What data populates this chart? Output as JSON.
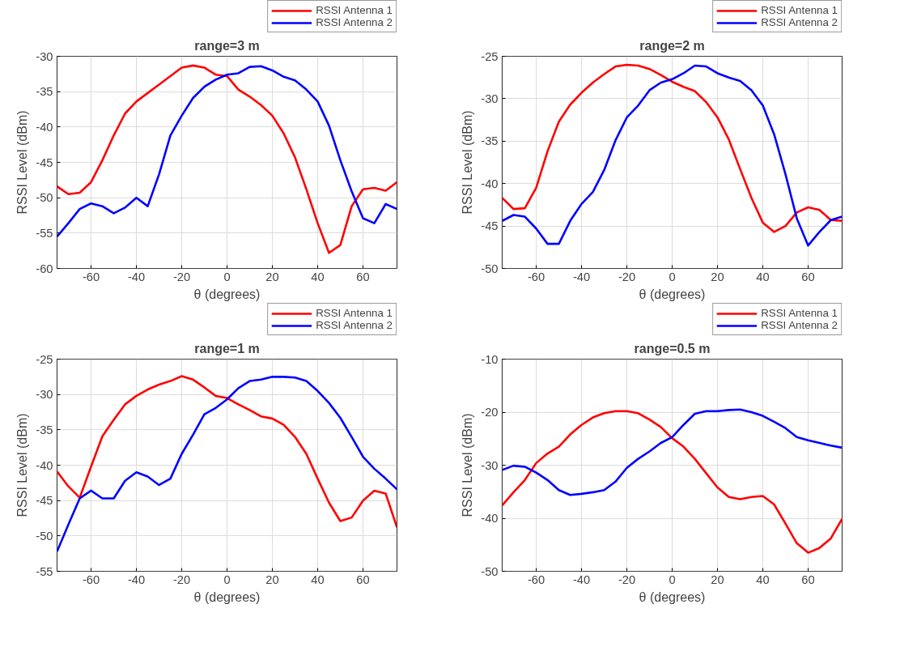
{
  "chart_data": [
    {
      "type": "line",
      "title": "range=3 m",
      "xlabel": "θ (degrees)",
      "ylabel": "RSSI Level (dBm)",
      "xlim": [
        -75,
        75
      ],
      "xticks": [
        -60,
        -40,
        -20,
        0,
        20,
        40,
        60
      ],
      "ylim": [
        -60,
        -30
      ],
      "yticks": [
        -60,
        -55,
        -50,
        -45,
        -40,
        -35,
        -30
      ],
      "grid": true,
      "legend": "top right",
      "line_style": "solid",
      "x": [
        -75,
        -70,
        -65,
        -60,
        -55,
        -50,
        -45,
        -40,
        -35,
        -30,
        -25,
        -20,
        -15,
        -10,
        -5,
        0,
        5,
        10,
        15,
        20,
        25,
        30,
        35,
        40,
        45,
        50,
        55,
        60,
        65,
        70,
        75
      ],
      "series": [
        {
          "name": "RSSI Antenna 1",
          "color": "#ff0000",
          "values": [
            -48.4,
            -49.5,
            -49.3,
            -47.8,
            -44.7,
            -41.2,
            -38.1,
            -36.4,
            -35.2,
            -34,
            -32.8,
            -31.6,
            -31.3,
            -31.6,
            -32.6,
            -32.8,
            -34.7,
            -35.7,
            -36.9,
            -38.4,
            -40.9,
            -44.3,
            -48.8,
            -53.6,
            -57.8,
            -56.7,
            -51.2,
            -48.8,
            -48.6,
            -49,
            -47.8
          ]
        },
        {
          "name": "RSSI Antenna 2",
          "color": "#0000ff",
          "values": [
            -55.5,
            -53.6,
            -51.6,
            -50.8,
            -51.2,
            -52.2,
            -51.4,
            -50,
            -51.2,
            -46.7,
            -41.2,
            -38.4,
            -35.9,
            -34.3,
            -33.3,
            -32.6,
            -32.4,
            -31.5,
            -31.4,
            -32,
            -32.9,
            -33.4,
            -34.7,
            -36.4,
            -39.8,
            -44.7,
            -49.1,
            -52.9,
            -53.6,
            -50.9,
            -51.6
          ]
        }
      ]
    },
    {
      "type": "line",
      "title": "range=2 m",
      "xlabel": "θ (degrees)",
      "ylabel": "RSSI Level (dBm)",
      "xlim": [
        -75,
        75
      ],
      "xticks": [
        -60,
        -40,
        -20,
        0,
        20,
        40,
        60
      ],
      "ylim": [
        -50,
        -25
      ],
      "yticks": [
        -50,
        -45,
        -40,
        -35,
        -30,
        -25
      ],
      "grid": true,
      "legend": "top right",
      "line_style": "solid",
      "x": [
        -75,
        -70,
        -65,
        -60,
        -55,
        -50,
        -45,
        -40,
        -35,
        -30,
        -25,
        -20,
        -15,
        -10,
        -5,
        0,
        5,
        10,
        15,
        20,
        25,
        30,
        35,
        40,
        45,
        50,
        55,
        60,
        65,
        70,
        75
      ],
      "series": [
        {
          "name": "RSSI Antenna 1",
          "color": "#ff0000",
          "values": [
            -41.7,
            -43,
            -42.9,
            -40.5,
            -36.2,
            -32.7,
            -30.7,
            -29.3,
            -28.1,
            -27.1,
            -26.2,
            -26,
            -26.1,
            -26.5,
            -27.2,
            -28,
            -28.6,
            -29.1,
            -30.4,
            -32.2,
            -34.8,
            -38.3,
            -41.7,
            -44.6,
            -45.7,
            -45,
            -43.4,
            -42.8,
            -43.1,
            -44.3,
            -44.4
          ]
        },
        {
          "name": "RSSI Antenna 2",
          "color": "#0000ff",
          "values": [
            -44.4,
            -43.7,
            -43.9,
            -45.3,
            -47.1,
            -47.1,
            -44.4,
            -42.4,
            -41,
            -38.4,
            -34.9,
            -32.2,
            -30.8,
            -29,
            -28.1,
            -27.7,
            -27,
            -26.1,
            -26.2,
            -27,
            -27.5,
            -27.9,
            -29,
            -30.8,
            -34.2,
            -38.9,
            -44.1,
            -47.3,
            -45.7,
            -44.3,
            -43.9
          ]
        }
      ]
    },
    {
      "type": "line",
      "title": "range=1 m",
      "xlabel": "θ (degrees)",
      "ylabel": "RSSI Level (dBm)",
      "xlim": [
        -75,
        75
      ],
      "xticks": [
        -60,
        -40,
        -20,
        0,
        20,
        40,
        60
      ],
      "ylim": [
        -55,
        -25
      ],
      "yticks": [
        -55,
        -50,
        -45,
        -40,
        -35,
        -30,
        -25
      ],
      "grid": true,
      "legend": "top right",
      "line_style": "solid",
      "x": [
        -75,
        -70,
        -65,
        -60,
        -55,
        -50,
        -45,
        -40,
        -35,
        -30,
        -25,
        -20,
        -15,
        -10,
        -5,
        0,
        5,
        10,
        15,
        20,
        25,
        30,
        35,
        40,
        45,
        50,
        55,
        60,
        65,
        70,
        75
      ],
      "series": [
        {
          "name": "RSSI Antenna 1",
          "color": "#ff0000",
          "values": [
            -40.9,
            -43,
            -44.6,
            -40.2,
            -35.9,
            -33.6,
            -31.4,
            -30.2,
            -29.3,
            -28.6,
            -28.1,
            -27.4,
            -27.9,
            -29,
            -30.2,
            -30.5,
            -31.4,
            -32.2,
            -33.1,
            -33.4,
            -34.3,
            -36,
            -38.4,
            -41.9,
            -45.3,
            -47.9,
            -47.4,
            -45,
            -43.6,
            -44,
            -48.8
          ]
        },
        {
          "name": "RSSI Antenna 2",
          "color": "#0000ff",
          "values": [
            -52.2,
            -48.4,
            -44.7,
            -43.6,
            -44.7,
            -44.7,
            -42.2,
            -41,
            -41.6,
            -42.8,
            -41.9,
            -38.4,
            -35.7,
            -32.8,
            -31.9,
            -30.7,
            -29.1,
            -28.1,
            -27.9,
            -27.5,
            -27.5,
            -27.6,
            -28.1,
            -29.5,
            -31.2,
            -33.3,
            -36,
            -38.8,
            -40.5,
            -41.9,
            -43.4
          ]
        }
      ]
    },
    {
      "type": "line",
      "title": "range=0.5 m",
      "xlabel": "θ (degrees)",
      "ylabel": "RSSI Level (dBm)",
      "xlim": [
        -75,
        75
      ],
      "xticks": [
        -60,
        -40,
        -20,
        0,
        20,
        40,
        60
      ],
      "ylim": [
        -50,
        -10
      ],
      "yticks": [
        -50,
        -40,
        -30,
        -20,
        -10
      ],
      "grid": true,
      "legend": "top right",
      "line_style": "solid",
      "x": [
        -75,
        -70,
        -65,
        -60,
        -55,
        -50,
        -45,
        -40,
        -35,
        -30,
        -25,
        -20,
        -15,
        -10,
        -5,
        0,
        5,
        10,
        15,
        20,
        25,
        30,
        35,
        40,
        45,
        50,
        55,
        60,
        65,
        70,
        75
      ],
      "series": [
        {
          "name": "RSSI Antenna 1",
          "color": "#ff0000",
          "values": [
            -37.6,
            -35.1,
            -32.8,
            -29.6,
            -27.8,
            -26.5,
            -24.2,
            -22.4,
            -21,
            -20.2,
            -19.8,
            -19.8,
            -20.2,
            -21.4,
            -22.8,
            -24.9,
            -26.5,
            -28.8,
            -31.5,
            -34.2,
            -36,
            -36.4,
            -36,
            -35.8,
            -37.4,
            -41,
            -44.7,
            -46.5,
            -45.6,
            -43.8,
            -40.1
          ]
        },
        {
          "name": "RSSI Antenna 2",
          "color": "#0000ff",
          "values": [
            -30.9,
            -30.1,
            -30.3,
            -31.4,
            -32.8,
            -34.7,
            -35.6,
            -35.4,
            -35.1,
            -34.7,
            -33.1,
            -30.5,
            -28.8,
            -27.4,
            -25.8,
            -24.7,
            -22.4,
            -20.3,
            -19.8,
            -19.8,
            -19.6,
            -19.5,
            -20,
            -20.7,
            -21.8,
            -23,
            -24.7,
            -25.3,
            -25.8,
            -26.3,
            -26.7
          ]
        }
      ]
    }
  ]
}
